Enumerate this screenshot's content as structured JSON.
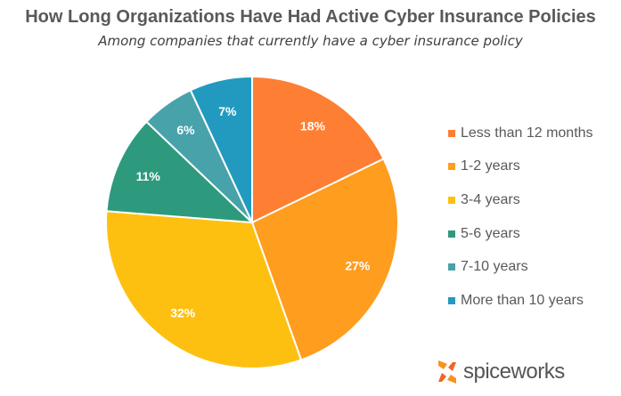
{
  "chart_data": {
    "type": "pie",
    "title": "How Long Organizations Have Had Active Cyber Insurance Policies",
    "subtitle": "Among companies that currently have a cyber insurance policy",
    "categories": [
      "Less than 12 months",
      "1-2 years",
      "3-4 years",
      "5-6 years",
      "7-10 years",
      "More than 10 years"
    ],
    "values": [
      18,
      27,
      32,
      11,
      6,
      7
    ],
    "data_labels": [
      "18%",
      "27%",
      "32%",
      "11%",
      "6%",
      "7%"
    ],
    "colors": [
      "#FE7F33",
      "#FE9D1E",
      "#FEC010",
      "#2D9A7E",
      "#48A2AA",
      "#229ABF"
    ],
    "legend_placement": "right",
    "start_angle": "top, clockwise"
  },
  "branding": {
    "logo_text": "spiceworks"
  }
}
